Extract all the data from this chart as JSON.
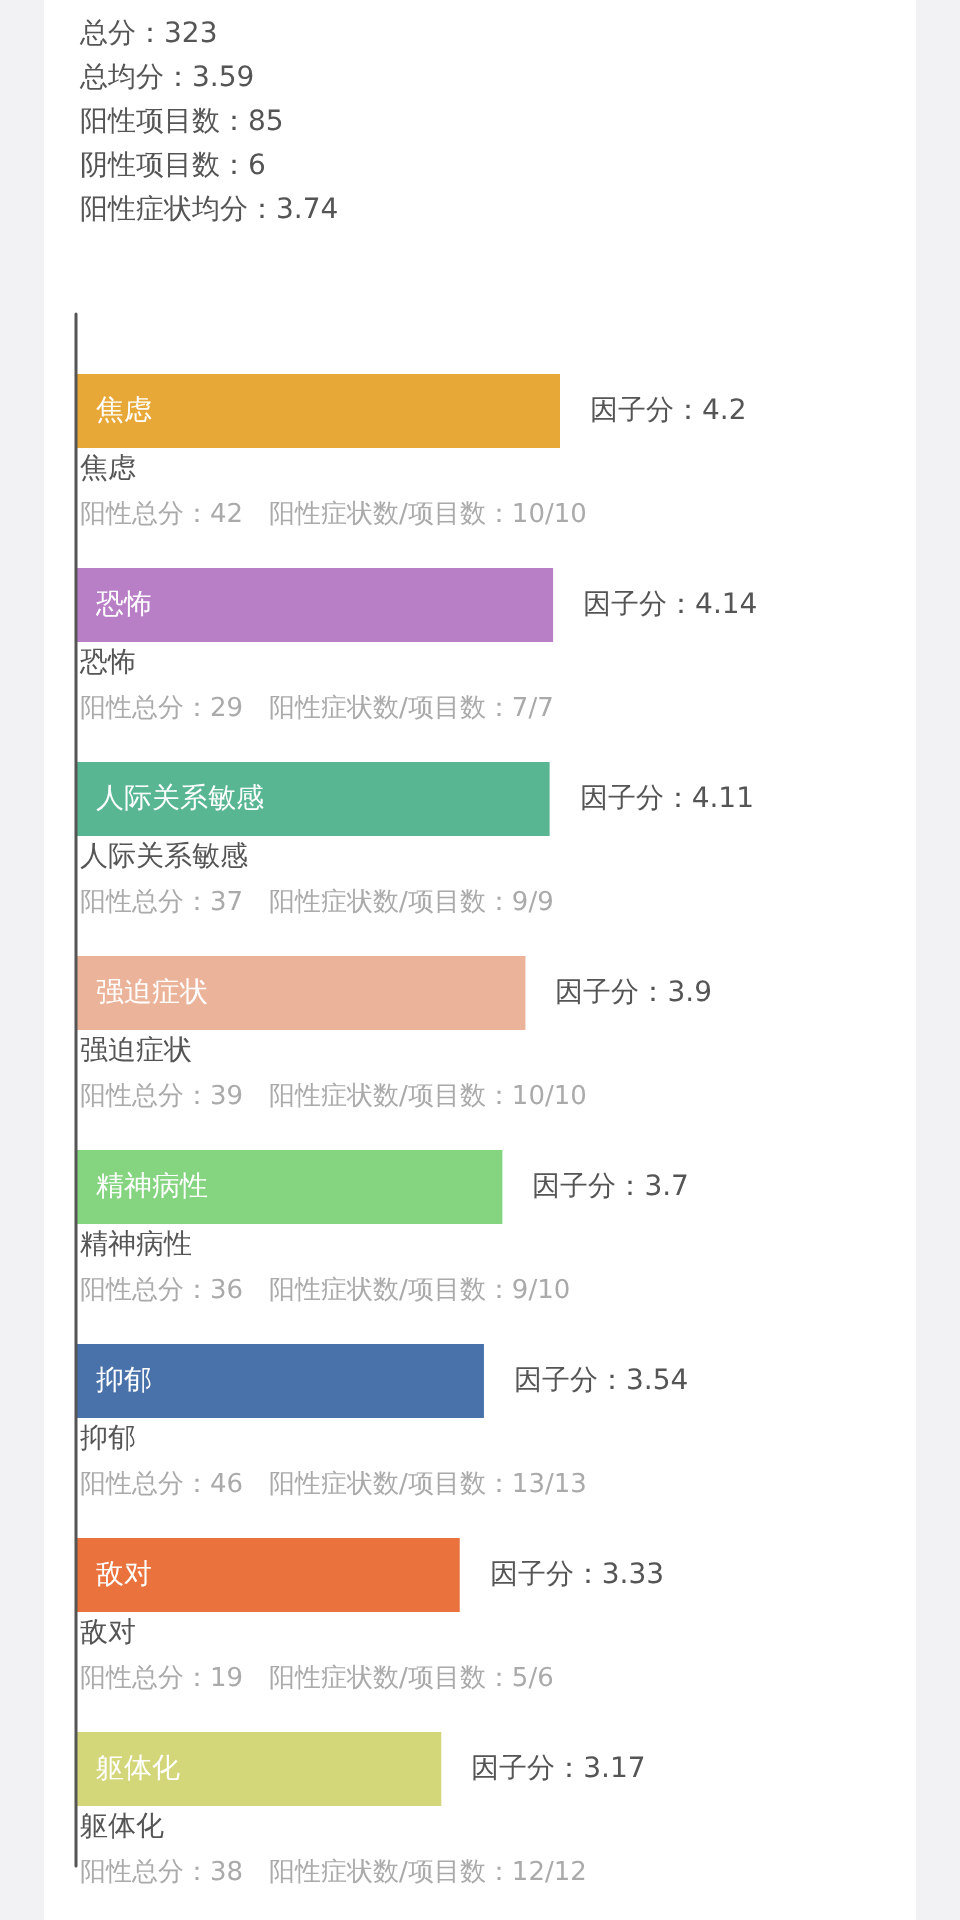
{
  "chart_data": {
    "type": "bar",
    "orientation": "horizontal",
    "categories": [
      "焦虑",
      "恐怖",
      "人际关系敏感",
      "强迫症状",
      "精神病性",
      "抑郁",
      "敌对",
      "躯体化"
    ],
    "values": [
      4.2,
      4.14,
      4.11,
      3.9,
      3.7,
      3.54,
      3.33,
      3.17
    ],
    "colors": [
      "#e8a838",
      "#b87ec6",
      "#58b692",
      "#ebb39a",
      "#84d480",
      "#4a72aa",
      "#ea733d",
      "#d4d67a"
    ],
    "value_labels": [
      "因子分：4.2",
      "因子分：4.14",
      "因子分：4.11",
      "因子分：3.9",
      "因子分：3.7",
      "因子分：3.54",
      "因子分：3.33",
      "因子分：3.17"
    ],
    "annotations": [
      "总分：323",
      "总均分：3.59",
      "阳性项目数：85",
      "阴性项目数：6",
      "阳性症状均分：3.74",
      "焦虑",
      "阳性总分：42　阳性症状数/项目数：10/10",
      "恐怖",
      "阳性总分：29　阳性症状数/项目数：7/7",
      "人际关系敏感",
      "阳性总分：37　阳性症状数/项目数：9/9",
      "强迫症状",
      "阳性总分：39　阳性症状数/项目数：10/10",
      "精神病性",
      "阳性总分：36　阳性症状数/项目数：9/10",
      "抑郁",
      "阳性总分：46　阳性症状数/项目数：13/13",
      "敌对",
      "阳性总分：19　阳性症状数/项目数：5/6",
      "躯体化",
      "阳性总分：38　阳性症状数/项目数：12/12"
    ]
  }
}
